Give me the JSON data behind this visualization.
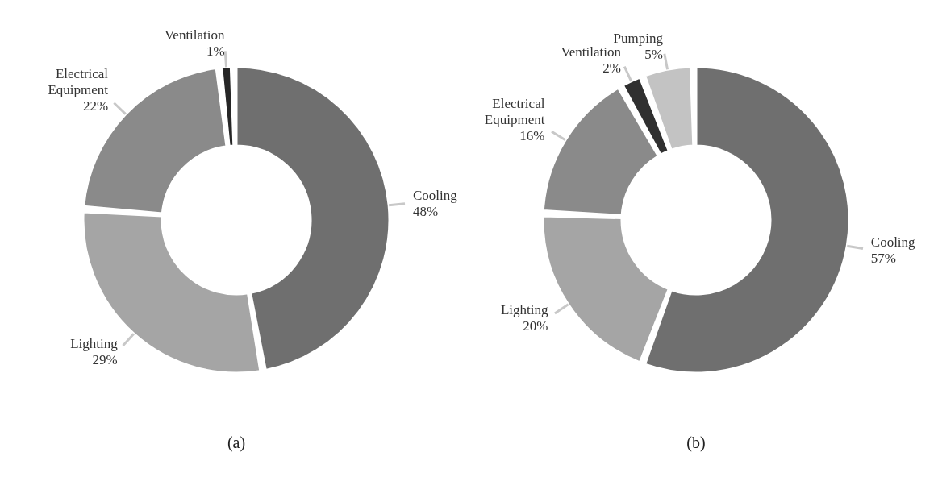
{
  "chart_data": [
    {
      "type": "donut",
      "title": "(a)",
      "categories": [
        "Cooling",
        "Lighting",
        "Electrical  Equipment",
        "Ventilation"
      ],
      "values": [
        48,
        29,
        22,
        1
      ],
      "colors": [
        "#6f6f6f",
        "#a5a5a5",
        "#8a8a8a",
        "#262626"
      ],
      "value_labels": [
        "48%",
        "29%",
        "22%",
        "1%"
      ]
    },
    {
      "type": "donut",
      "title": "(b)",
      "categories": [
        "Cooling",
        "Lighting",
        "Electrical Equipment",
        "Ventilation",
        "Pumping"
      ],
      "values": [
        57,
        20,
        16,
        2,
        5
      ],
      "colors": [
        "#6f6f6f",
        "#a5a5a5",
        "#8a8a8a",
        "#303030",
        "#c3c3c3"
      ],
      "value_labels": [
        "57%",
        "20%",
        "16%",
        "2%",
        "5%"
      ]
    }
  ]
}
